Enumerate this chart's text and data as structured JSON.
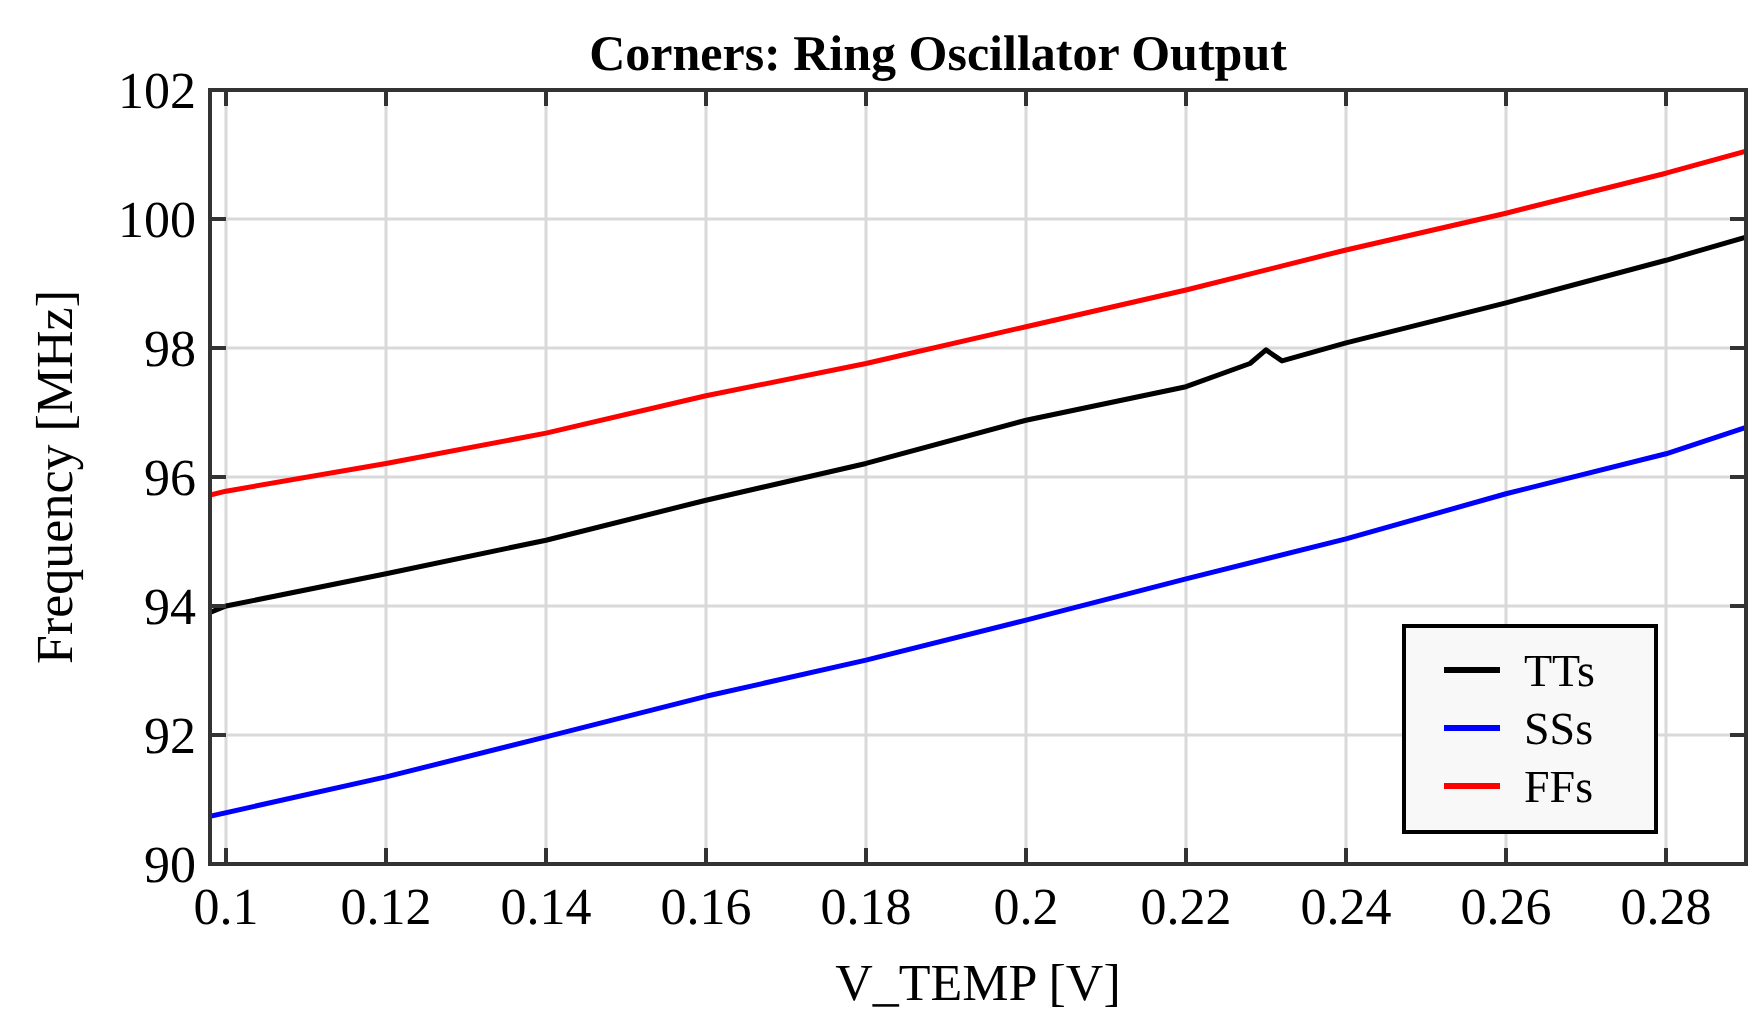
{
  "chart_data": {
    "type": "line",
    "title": "Corners: Ring Oscillator Output",
    "xlabel": "V_TEMP [V]",
    "ylabel": "Frequency [MHz]",
    "xlim": [
      0.098,
      0.29
    ],
    "xticks": [
      0.1,
      0.12,
      0.14,
      0.16,
      0.18,
      0.2,
      0.22,
      0.24,
      0.26,
      0.28
    ],
    "ylim": [
      90,
      102
    ],
    "yticks": [
      90,
      92,
      94,
      96,
      98,
      100,
      102
    ],
    "grid": true,
    "legend": "bottom right",
    "line_style": "solid",
    "marker": "none",
    "series": [
      {
        "name": "TTs",
        "color": "#000000",
        "x": [
          0.098,
          0.1,
          0.12,
          0.14,
          0.16,
          0.18,
          0.2,
          0.22,
          0.228,
          0.23,
          0.232,
          0.24,
          0.26,
          0.28,
          0.29
        ],
        "values": [
          93.9,
          94.0,
          94.5,
          95.02,
          95.64,
          96.21,
          96.88,
          97.4,
          97.76,
          97.97,
          97.8,
          98.08,
          98.7,
          99.36,
          99.72
        ]
      },
      {
        "name": "SSs",
        "color": "#0000ff",
        "x": [
          0.098,
          0.12,
          0.14,
          0.16,
          0.18,
          0.2,
          0.22,
          0.24,
          0.26,
          0.28,
          0.29
        ],
        "values": [
          90.74,
          91.35,
          91.97,
          92.6,
          93.16,
          93.78,
          94.42,
          95.04,
          95.74,
          96.36,
          96.77
        ]
      },
      {
        "name": "FFs",
        "color": "#ff0000",
        "x": [
          0.098,
          0.1,
          0.12,
          0.14,
          0.16,
          0.18,
          0.2,
          0.22,
          0.24,
          0.26,
          0.28,
          0.29
        ],
        "values": [
          95.72,
          95.78,
          96.21,
          96.68,
          97.26,
          97.76,
          98.33,
          98.9,
          99.52,
          100.09,
          100.71,
          101.05
        ]
      }
    ]
  }
}
